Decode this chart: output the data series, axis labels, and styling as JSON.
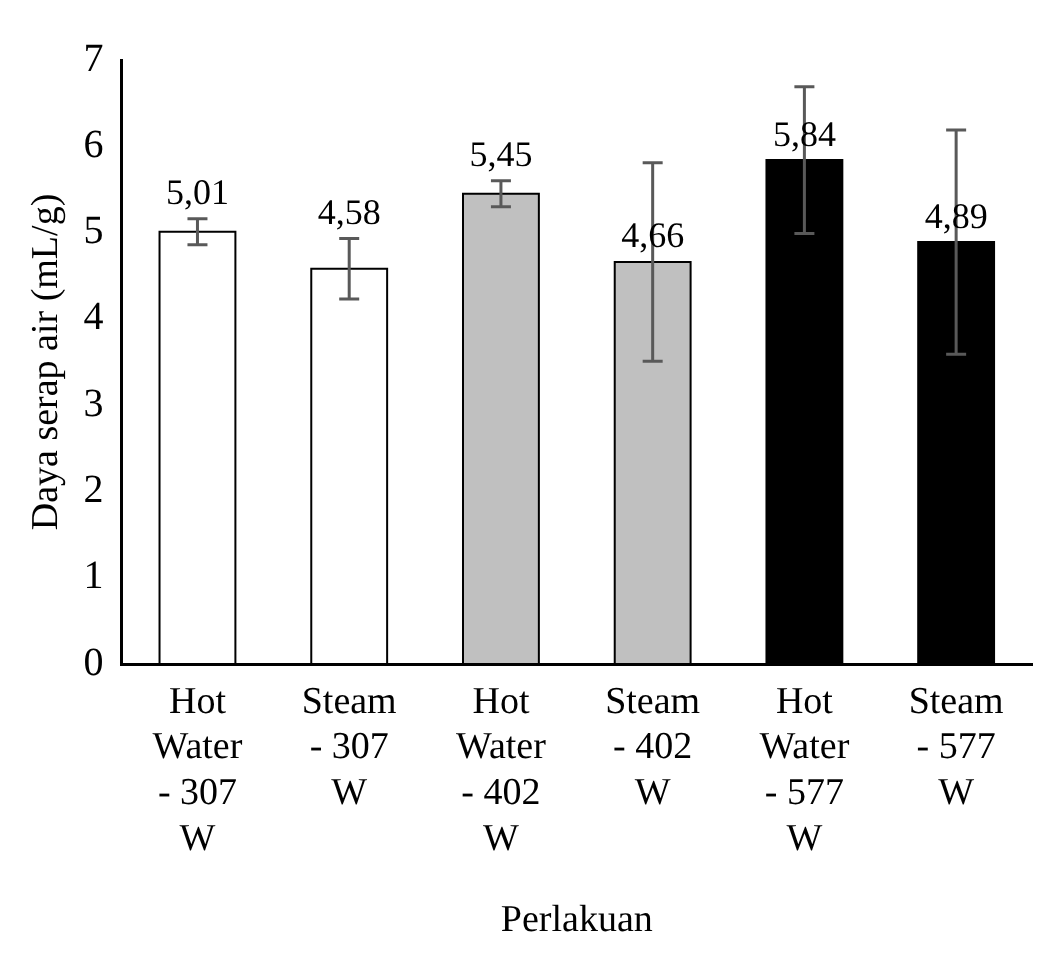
{
  "chart_data": {
    "type": "bar",
    "xlabel": "Perlakuan",
    "ylabel": "Daya serap air (mL/g)",
    "categories": [
      "Hot Water - 307 W",
      "Steam - 307 W",
      "Hot Water - 402 W",
      "Steam - 402 W",
      "Hot Water - 577 W",
      "Steam - 577 W"
    ],
    "values": [
      5.01,
      4.58,
      5.45,
      4.66,
      5.84,
      4.89
    ],
    "colors": [
      "#ffffff",
      "#ffffff",
      "#c0c0c0",
      "#c0c0c0",
      "#000000",
      "#000000"
    ],
    "errors": [
      0.15,
      0.35,
      0.15,
      1.15,
      0.85,
      1.3
    ],
    "ylim": [
      0,
      7
    ],
    "yticks": [
      0,
      1,
      2,
      3,
      4,
      5,
      6,
      7
    ],
    "value_labels": [
      "5,01",
      "4,58",
      "5,45",
      "4,66",
      "5,84",
      "4,89"
    ],
    "grid": false,
    "legend": false
  }
}
